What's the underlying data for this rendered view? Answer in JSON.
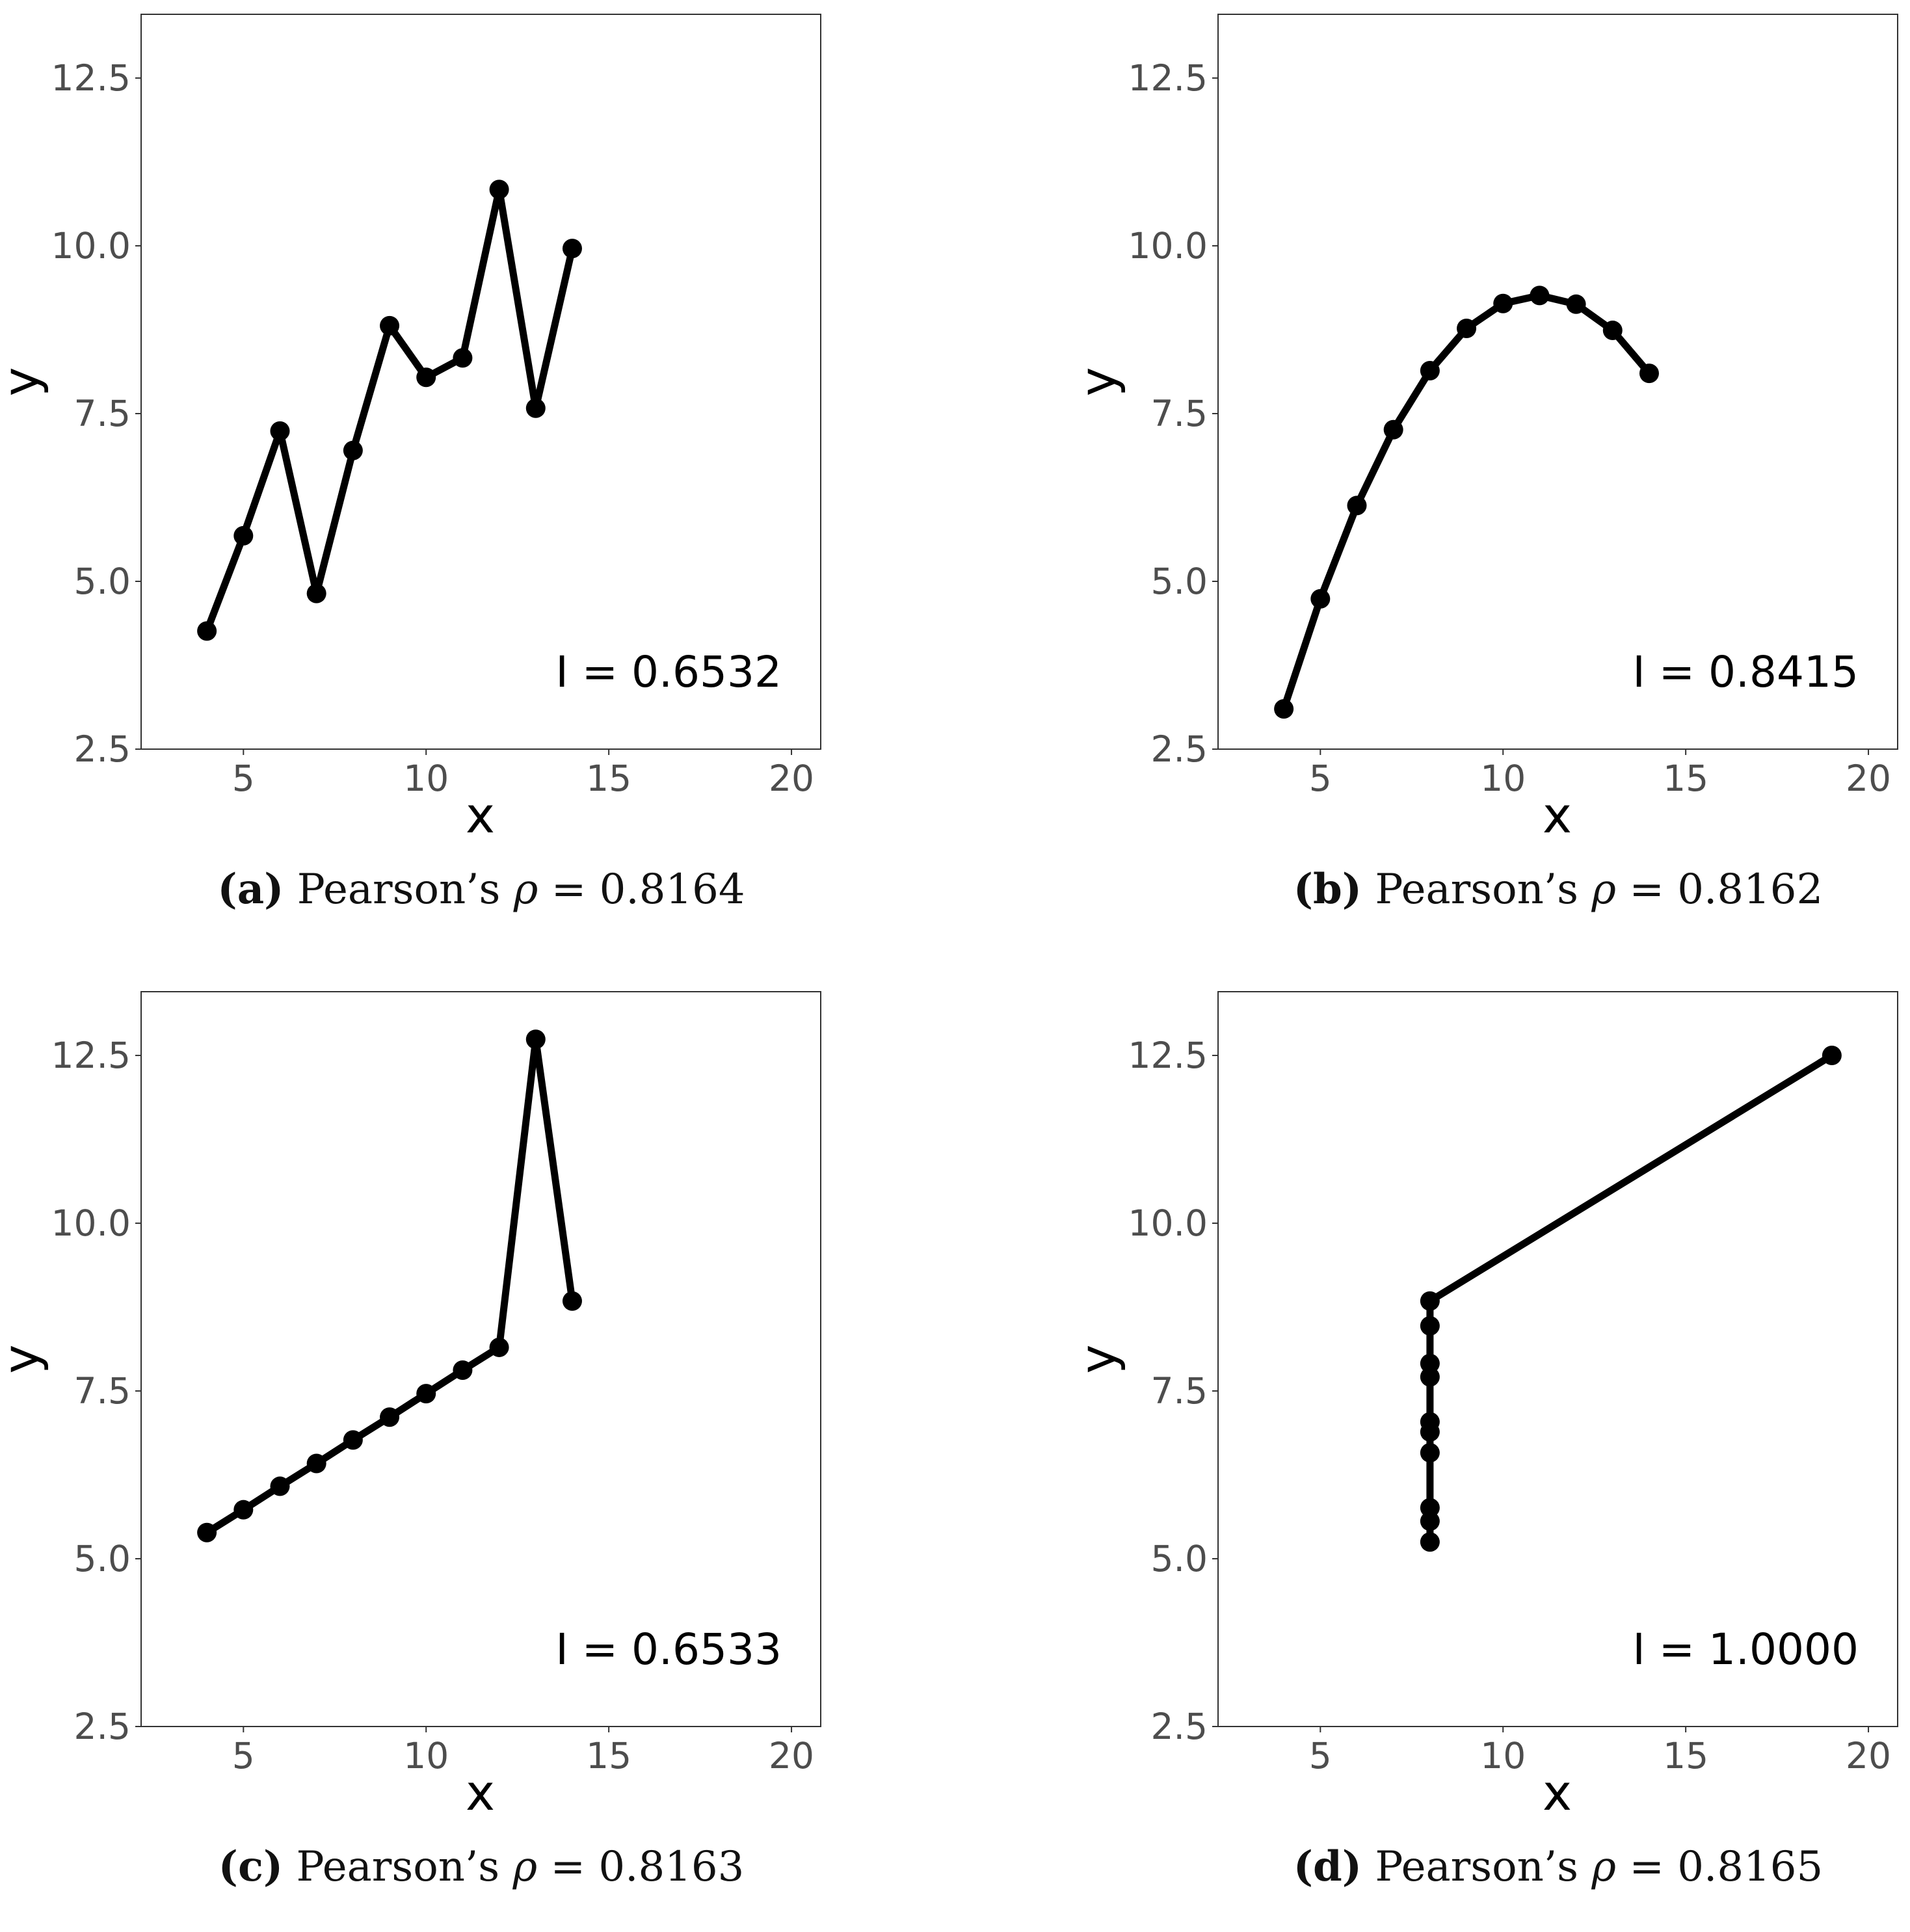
{
  "colors": {
    "line": "#000000",
    "point": "#000000",
    "axis_text": "#4d4d4d",
    "frame": "#333333",
    "annotation": "#000000",
    "caption": "#111111"
  },
  "chart_data": [
    {
      "type": "line",
      "panel_label": "(a)",
      "caption_text": "Pearson’s",
      "caption_symbol": "ρ",
      "caption_value": "= 0.8164",
      "annotation": "I = 0.6532",
      "xlabel": "x",
      "ylabel": "y",
      "xlim": [
        2.2,
        20.8
      ],
      "ylim": [
        2.5,
        13.45
      ],
      "xticks": [
        5,
        10,
        15,
        20
      ],
      "yticks": [
        2.5,
        5.0,
        7.5,
        10.0,
        12.5
      ],
      "xtick_labels": [
        "5",
        "10",
        "15",
        "20"
      ],
      "ytick_labels": [
        "2.5",
        "5.0",
        "7.5",
        "10.0",
        "12.5"
      ],
      "grid": false,
      "x": [
        4,
        5,
        6,
        7,
        8,
        9,
        10,
        11,
        12,
        13,
        14
      ],
      "y": [
        4.26,
        5.68,
        7.24,
        4.82,
        6.95,
        8.81,
        8.04,
        8.33,
        10.84,
        7.58,
        9.96
      ]
    },
    {
      "type": "line",
      "panel_label": "(b)",
      "caption_text": "Pearson’s",
      "caption_symbol": "ρ",
      "caption_value": "= 0.8162",
      "annotation": "I = 0.8415",
      "xlabel": "x",
      "ylabel": "y",
      "xlim": [
        2.2,
        20.8
      ],
      "ylim": [
        2.5,
        13.45
      ],
      "xticks": [
        5,
        10,
        15,
        20
      ],
      "yticks": [
        2.5,
        5.0,
        7.5,
        10.0,
        12.5
      ],
      "xtick_labels": [
        "5",
        "10",
        "15",
        "20"
      ],
      "ytick_labels": [
        "2.5",
        "5.0",
        "7.5",
        "10.0",
        "12.5"
      ],
      "grid": false,
      "x": [
        4,
        5,
        6,
        7,
        8,
        9,
        10,
        11,
        12,
        13,
        14
      ],
      "y": [
        3.1,
        4.74,
        6.13,
        7.26,
        8.14,
        8.77,
        9.14,
        9.26,
        9.13,
        8.74,
        8.1
      ]
    },
    {
      "type": "line",
      "panel_label": "(c)",
      "caption_text": "Pearson’s",
      "caption_symbol": "ρ",
      "caption_value": "= 0.8163",
      "annotation": "I = 0.6533",
      "xlabel": "x",
      "ylabel": "y",
      "xlim": [
        2.2,
        20.8
      ],
      "ylim": [
        2.5,
        13.45
      ],
      "xticks": [
        5,
        10,
        15,
        20
      ],
      "yticks": [
        2.5,
        5.0,
        7.5,
        10.0,
        12.5
      ],
      "xtick_labels": [
        "5",
        "10",
        "15",
        "20"
      ],
      "ytick_labels": [
        "2.5",
        "5.0",
        "7.5",
        "10.0",
        "12.5"
      ],
      "grid": false,
      "x": [
        4,
        5,
        6,
        7,
        8,
        9,
        10,
        11,
        12,
        13,
        14
      ],
      "y": [
        5.39,
        5.73,
        6.08,
        6.42,
        6.77,
        7.11,
        7.46,
        7.81,
        8.15,
        12.74,
        8.84
      ]
    },
    {
      "type": "line",
      "panel_label": "(d)",
      "caption_text": "Pearson’s",
      "caption_symbol": "ρ",
      "caption_value": "= 0.8165",
      "annotation": "I = 1.0000",
      "xlabel": "x",
      "ylabel": "y",
      "xlim": [
        2.2,
        20.8
      ],
      "ylim": [
        2.5,
        13.45
      ],
      "xticks": [
        5,
        10,
        15,
        20
      ],
      "yticks": [
        2.5,
        5.0,
        7.5,
        10.0,
        12.5
      ],
      "xtick_labels": [
        "5",
        "10",
        "15",
        "20"
      ],
      "ytick_labels": [
        "2.5",
        "5.0",
        "7.5",
        "10.0",
        "12.5"
      ],
      "grid": false,
      "x": [
        8,
        8,
        8,
        8,
        8,
        8,
        8,
        8,
        8,
        8,
        19
      ],
      "y": [
        5.25,
        5.56,
        5.76,
        6.58,
        6.89,
        7.04,
        7.71,
        7.91,
        8.47,
        8.84,
        12.5
      ]
    }
  ]
}
